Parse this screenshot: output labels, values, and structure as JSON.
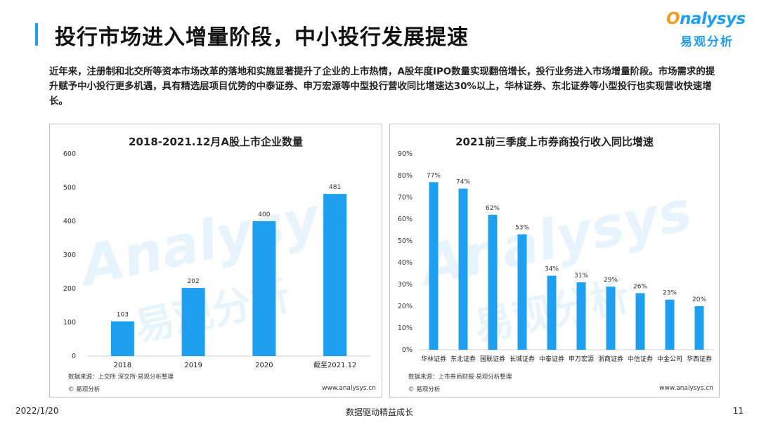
{
  "page": {
    "title": "投行市场进入增量阶段，中小投行发展提速",
    "intro": "近年来，注册制和北交所等资本市场改革的落地和实施显著提升了企业的上市热情，A股年度IPO数量实现翻倍增长，投行业务进入市场增量阶段。市场需求的提升赋予中小投行更多机遇，具有精选层项目优势的中泰证券、申万宏源等中型投行营收同比增速达30%以上，华林证券、东北证券等小型投行也实现营收快速增长。"
  },
  "logo": {
    "word_o": "O",
    "word_rest": "nalysys",
    "cn": "易观分析"
  },
  "watermark": {
    "word": "Analysys",
    "cn": "易观分析"
  },
  "left_panel": {
    "source": "数据来源：上交所 深交所·易观分析整理",
    "copyright": "© 易观分析",
    "website": "www.analysys.cn"
  },
  "right_panel": {
    "source": "数据来源：上市券商财报·易观分析整理",
    "copyright": "© 易观分析",
    "website": "www.analysys.cn"
  },
  "chart_data": [
    {
      "type": "bar",
      "title": "2018-2021.12月A股上市企业数量",
      "categories": [
        "2018",
        "2019",
        "2020",
        "截至2021.12"
      ],
      "values": [
        103,
        202,
        400,
        481
      ],
      "value_labels": [
        "103",
        "202",
        "400",
        "481"
      ],
      "ylim": [
        0,
        600
      ],
      "yticks": [
        "0",
        "100",
        "200",
        "300",
        "400",
        "500",
        "600"
      ],
      "grid": false,
      "color": "#1f9ff0"
    },
    {
      "type": "bar",
      "title": "2021前三季度上市券商投行收入同比增速",
      "categories": [
        "华林证券",
        "东北证券",
        "国联证券",
        "长城证券",
        "中泰证券",
        "申万宏源",
        "浙商证券",
        "中信证券",
        "中金公司",
        "华西证券"
      ],
      "values": [
        77,
        74,
        62,
        53,
        34,
        31,
        29,
        26,
        23,
        20
      ],
      "value_labels": [
        "77%",
        "74%",
        "62%",
        "53%",
        "34%",
        "31%",
        "29%",
        "26%",
        "23%",
        "20%"
      ],
      "ylim": [
        0,
        90
      ],
      "yticks": [
        "0%",
        "10%",
        "20%",
        "30%",
        "40%",
        "50%",
        "60%",
        "70%",
        "80%",
        "90%"
      ],
      "grid": false,
      "color": "#1f9ff0"
    }
  ],
  "footer": {
    "date": "2022/1/20",
    "slogan": "数据驱动精益成长",
    "page_number": "11"
  }
}
